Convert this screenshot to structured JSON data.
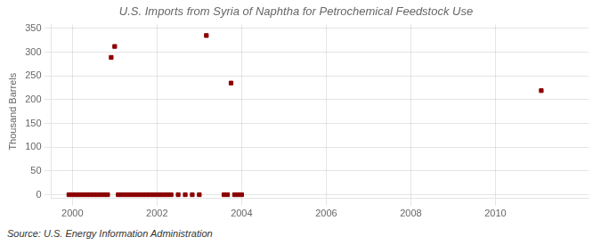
{
  "chart_data": {
    "type": "scatter",
    "title": "U.S. Imports from Syria of Naphtha for Petrochemical Feedstock Use",
    "ylabel": "Thousand Barrels",
    "annotations": [
      "Source: U.S. Energy Information Administration"
    ],
    "color": "#8b0000",
    "marker": "square",
    "grid": true,
    "xlim": [
      1999.5,
      2012.2
    ],
    "ylim": [
      -8,
      358
    ],
    "xticks": [
      2000,
      2002,
      2004,
      2006,
      2008,
      2010
    ],
    "yticks": [
      0,
      50,
      100,
      150,
      200,
      250,
      300,
      350
    ],
    "x": [
      1999.917,
      2000.0,
      2000.083,
      2000.167,
      2000.25,
      2000.333,
      2000.417,
      2000.5,
      2000.583,
      2000.667,
      2000.75,
      2000.833,
      2000.917,
      2001.0,
      2001.083,
      2001.167,
      2001.25,
      2001.333,
      2001.417,
      2001.5,
      2001.583,
      2001.667,
      2001.75,
      2001.833,
      2001.917,
      2002.0,
      2002.083,
      2002.167,
      2002.25,
      2002.333,
      2002.5,
      2002.667,
      2002.833,
      2003.0,
      2003.167,
      2003.583,
      2003.667,
      2003.75,
      2003.833,
      2003.917,
      2004.0,
      2011.083
    ],
    "values": [
      0,
      0,
      0,
      0,
      0,
      0,
      0,
      0,
      0,
      0,
      0,
      0,
      289,
      312,
      0,
      0,
      0,
      0,
      0,
      0,
      0,
      0,
      0,
      0,
      0,
      0,
      0,
      0,
      0,
      0,
      0,
      0,
      0,
      0,
      335,
      0,
      0,
      235,
      0,
      0,
      0,
      219
    ]
  }
}
